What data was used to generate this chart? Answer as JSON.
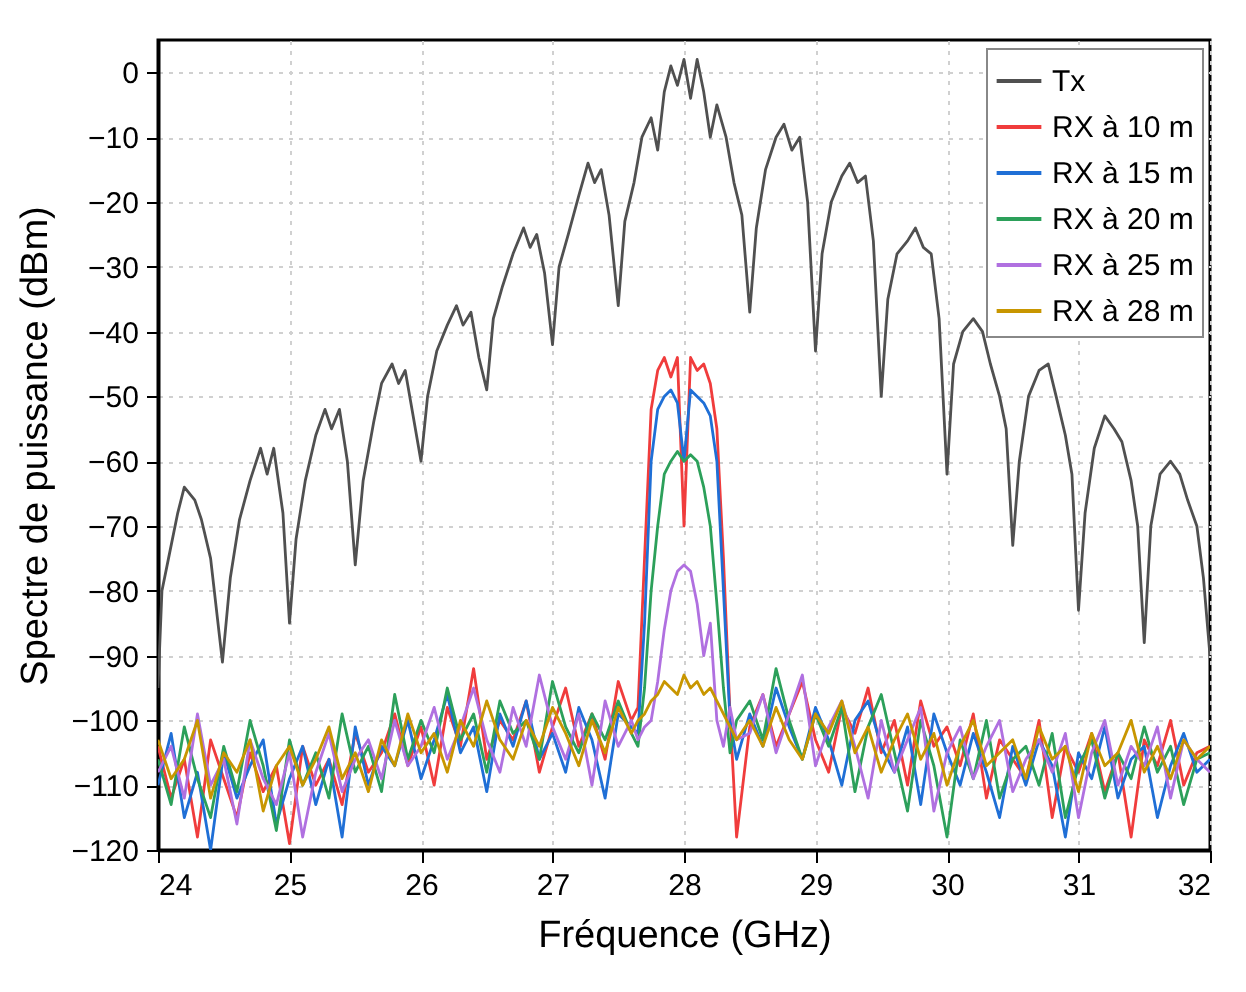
{
  "chart_data": {
    "type": "line",
    "xlabel": "Fréquence (GHz)",
    "ylabel": "Spectre de puissance (dBm)",
    "xlim": [
      24,
      32
    ],
    "xticks": [
      24,
      25,
      26,
      27,
      28,
      29,
      30,
      31,
      32
    ],
    "ylim": [
      -120,
      5
    ],
    "yticks": [
      -120,
      -110,
      -100,
      -90,
      -80,
      -70,
      -60,
      -50,
      -40,
      -30,
      -20,
      -10,
      0
    ],
    "grid": true,
    "legend": "top right",
    "line_style": "solid",
    "x": [
      24.0,
      24.1,
      24.2,
      24.3,
      24.4,
      24.5,
      24.6,
      24.7,
      24.8,
      24.9,
      25.0,
      25.1,
      25.2,
      25.3,
      25.4,
      25.5,
      25.6,
      25.7,
      25.8,
      25.9,
      26.0,
      26.1,
      26.2,
      26.3,
      26.4,
      26.5,
      26.6,
      26.7,
      26.8,
      26.9,
      27.0,
      27.1,
      27.2,
      27.3,
      27.4,
      27.5,
      27.6,
      27.65,
      27.7,
      27.75,
      27.8,
      27.85,
      27.9,
      27.95,
      28.0,
      28.05,
      28.1,
      28.15,
      28.2,
      28.25,
      28.3,
      28.35,
      28.4,
      28.5,
      28.6,
      28.7,
      28.8,
      28.9,
      29.0,
      29.1,
      29.2,
      29.3,
      29.4,
      29.5,
      29.6,
      29.7,
      29.8,
      29.9,
      30.0,
      30.1,
      30.2,
      30.3,
      30.4,
      30.5,
      30.6,
      30.7,
      30.8,
      30.9,
      31.0,
      31.1,
      31.2,
      31.3,
      31.4,
      31.5,
      31.6,
      31.7,
      31.8,
      31.9,
      32.0
    ],
    "series": [
      {
        "name": "Tx",
        "color": "#505050",
        "x": [
          24.0,
          24.03,
          24.08,
          24.15,
          24.2,
          24.28,
          24.33,
          24.4,
          24.49,
          24.55,
          24.62,
          24.7,
          24.78,
          24.83,
          24.88,
          24.95,
          25.0,
          25.05,
          25.12,
          25.2,
          25.27,
          25.32,
          25.38,
          25.44,
          25.5,
          25.56,
          25.64,
          25.7,
          25.78,
          25.83,
          25.88,
          25.94,
          26.0,
          26.05,
          26.12,
          26.2,
          26.27,
          26.32,
          26.38,
          26.44,
          26.5,
          26.55,
          26.62,
          26.7,
          26.78,
          26.83,
          26.88,
          26.94,
          27.0,
          27.05,
          27.12,
          27.2,
          27.27,
          27.32,
          27.37,
          27.43,
          27.5,
          27.55,
          27.62,
          27.68,
          27.75,
          27.8,
          27.85,
          27.9,
          27.95,
          28.0,
          28.05,
          28.1,
          28.15,
          28.2,
          28.25,
          28.32,
          28.38,
          28.44,
          28.5,
          28.55,
          28.62,
          28.7,
          28.76,
          28.82,
          28.88,
          28.94,
          29.0,
          29.05,
          29.12,
          29.2,
          29.26,
          29.32,
          29.38,
          29.44,
          29.5,
          29.55,
          29.62,
          29.7,
          29.76,
          29.82,
          29.88,
          29.94,
          30.0,
          30.05,
          30.12,
          30.2,
          30.27,
          30.33,
          30.4,
          30.45,
          30.5,
          30.55,
          30.62,
          30.7,
          30.77,
          30.83,
          30.9,
          30.95,
          31.0,
          31.05,
          31.12,
          31.2,
          31.27,
          31.33,
          31.4,
          31.45,
          31.5,
          31.55,
          31.62,
          31.7,
          31.77,
          31.83,
          31.9,
          31.95,
          32.0
        ],
        "values": [
          -95,
          -80,
          -75,
          -68,
          -64,
          -66,
          -69,
          -75,
          -91,
          -78,
          -69,
          -63,
          -58,
          -62,
          -58,
          -68,
          -85,
          -72,
          -63,
          -56,
          -52,
          -55,
          -52,
          -60,
          -76,
          -63,
          -54,
          -48,
          -45,
          -48,
          -46,
          -53,
          -60,
          -50,
          -43,
          -39,
          -36,
          -39,
          -37,
          -44,
          -49,
          -38,
          -33,
          -28,
          -24,
          -27,
          -25,
          -31,
          -42,
          -30,
          -25,
          -19,
          -14,
          -17,
          -15,
          -22,
          -36,
          -23,
          -17,
          -10,
          -7,
          -12,
          -3,
          1,
          -2,
          2,
          -4,
          2,
          -3,
          -10,
          -5,
          -10,
          -17,
          -22,
          -37,
          -24,
          -15,
          -10,
          -8,
          -12,
          -10,
          -20,
          -43,
          -28,
          -20,
          -16,
          -14,
          -17,
          -16,
          -26,
          -50,
          -35,
          -28,
          -26,
          -24,
          -27,
          -28,
          -38,
          -62,
          -45,
          -40,
          -38,
          -40,
          -45,
          -50,
          -55,
          -73,
          -60,
          -50,
          -46,
          -45,
          -50,
          -56,
          -62,
          -83,
          -68,
          -58,
          -53,
          -55,
          -57,
          -63,
          -70,
          -88,
          -70,
          -62,
          -60,
          -62,
          -66,
          -70,
          -78,
          -90
        ]
      },
      {
        "name": "RX à 10 m",
        "color": "#f03c3c",
        "values": [
          -104,
          -112,
          -106,
          -118,
          -103,
          -109,
          -115,
          -105,
          -111,
          -107,
          -119,
          -104,
          -110,
          -106,
          -113,
          -102,
          -108,
          -105,
          -99,
          -107,
          -101,
          -110,
          -98,
          -104,
          -92,
          -106,
          -100,
          -103,
          -97,
          -108,
          -101,
          -95,
          -104,
          -99,
          -106,
          -94,
          -100,
          -98,
          -75,
          -52,
          -46,
          -44,
          -47,
          -44,
          -70,
          -44,
          -46,
          -45,
          -48,
          -55,
          -75,
          -99,
          -118,
          -101,
          -96,
          -104,
          -99,
          -94,
          -103,
          -108,
          -98,
          -102,
          -95,
          -105,
          -100,
          -110,
          -97,
          -104,
          -101,
          -107,
          -99,
          -112,
          -103,
          -106,
          -109,
          -100,
          -115,
          -104,
          -108,
          -102,
          -111,
          -105,
          -118,
          -103,
          -107,
          -100,
          -110,
          -105,
          -104
        ]
      },
      {
        "name": "RX à 15 m",
        "color": "#1f6fd6",
        "values": [
          -110,
          -102,
          -115,
          -108,
          -120,
          -105,
          -112,
          -107,
          -103,
          -116,
          -109,
          -104,
          -113,
          -106,
          -118,
          -101,
          -110,
          -104,
          -107,
          -100,
          -109,
          -103,
          -96,
          -105,
          -101,
          -111,
          -99,
          -104,
          -97,
          -106,
          -102,
          -108,
          -98,
          -103,
          -112,
          -99,
          -101,
          -102,
          -85,
          -60,
          -52,
          -50,
          -49,
          -51,
          -60,
          -49,
          -50,
          -51,
          -53,
          -60,
          -80,
          -100,
          -106,
          -99,
          -104,
          -95,
          -101,
          -106,
          -98,
          -103,
          -110,
          -100,
          -97,
          -104,
          -108,
          -101,
          -113,
          -99,
          -105,
          -110,
          -102,
          -108,
          -115,
          -104,
          -110,
          -103,
          -107,
          -118,
          -105,
          -109,
          -101,
          -112,
          -106,
          -104,
          -115,
          -107,
          -102,
          -108,
          -106
        ]
      },
      {
        "name": "RX à 20 m",
        "color": "#2ca05a",
        "values": [
          -106,
          -113,
          -101,
          -109,
          -115,
          -104,
          -111,
          -100,
          -107,
          -117,
          -103,
          -110,
          -105,
          -112,
          -99,
          -108,
          -104,
          -111,
          -96,
          -106,
          -100,
          -105,
          -95,
          -103,
          -99,
          -108,
          -97,
          -102,
          -100,
          -106,
          -94,
          -101,
          -105,
          -99,
          -103,
          -97,
          -102,
          -104,
          -95,
          -80,
          -70,
          -62,
          -60,
          -58.5,
          -60,
          -59,
          -60,
          -64,
          -70,
          -82,
          -95,
          -105,
          -100,
          -97,
          -103,
          -92,
          -100,
          -106,
          -99,
          -104,
          -98,
          -111,
          -101,
          -96,
          -105,
          -114,
          -100,
          -107,
          -118,
          -103,
          -109,
          -100,
          -112,
          -106,
          -104,
          -110,
          -102,
          -115,
          -107,
          -103,
          -112,
          -105,
          -109,
          -101,
          -108,
          -104,
          -113,
          -106,
          -105
        ]
      },
      {
        "name": "RX à 25 m",
        "color": "#b070e0",
        "values": [
          -108,
          -104,
          -112,
          -99,
          -110,
          -106,
          -116,
          -103,
          -109,
          -113,
          -105,
          -118,
          -108,
          -102,
          -111,
          -106,
          -103,
          -109,
          -100,
          -107,
          -104,
          -98,
          -106,
          -101,
          -95,
          -103,
          -108,
          -98,
          -104,
          -93,
          -101,
          -106,
          -99,
          -110,
          -97,
          -104,
          -100,
          -103,
          -101,
          -100,
          -94,
          -86,
          -80,
          -77,
          -76,
          -77,
          -82,
          -90,
          -85,
          -100,
          -104,
          -98,
          -103,
          -102,
          -96,
          -105,
          -99,
          -93,
          -107,
          -101,
          -97,
          -104,
          -112,
          -100,
          -108,
          -103,
          -98,
          -114,
          -105,
          -101,
          -109,
          -104,
          -100,
          -111,
          -106,
          -103,
          -108,
          -102,
          -115,
          -105,
          -100,
          -110,
          -104,
          -107,
          -101,
          -112,
          -103,
          -106,
          -108
        ]
      },
      {
        "name": "RX à 28 m",
        "color": "#c89600",
        "values": [
          -103,
          -109,
          -106,
          -100,
          -112,
          -105,
          -108,
          -103,
          -114,
          -107,
          -104,
          -110,
          -106,
          -101,
          -109,
          -105,
          -111,
          -103,
          -107,
          -99,
          -105,
          -102,
          -108,
          -100,
          -104,
          -97,
          -103,
          -106,
          -100,
          -104,
          -98,
          -102,
          -107,
          -100,
          -105,
          -98,
          -102,
          -100,
          -99,
          -97,
          -96,
          -94,
          -95,
          -96,
          -93,
          -95,
          -94,
          -96,
          -95,
          -97,
          -99,
          -101,
          -103,
          -100,
          -104,
          -98,
          -103,
          -106,
          -99,
          -102,
          -97,
          -105,
          -101,
          -108,
          -103,
          -99,
          -106,
          -102,
          -110,
          -104,
          -100,
          -107,
          -105,
          -103,
          -109,
          -101,
          -106,
          -104,
          -111,
          -102,
          -107,
          -105,
          -100,
          -108,
          -104,
          -109,
          -103,
          -106,
          -104
        ]
      }
    ]
  }
}
